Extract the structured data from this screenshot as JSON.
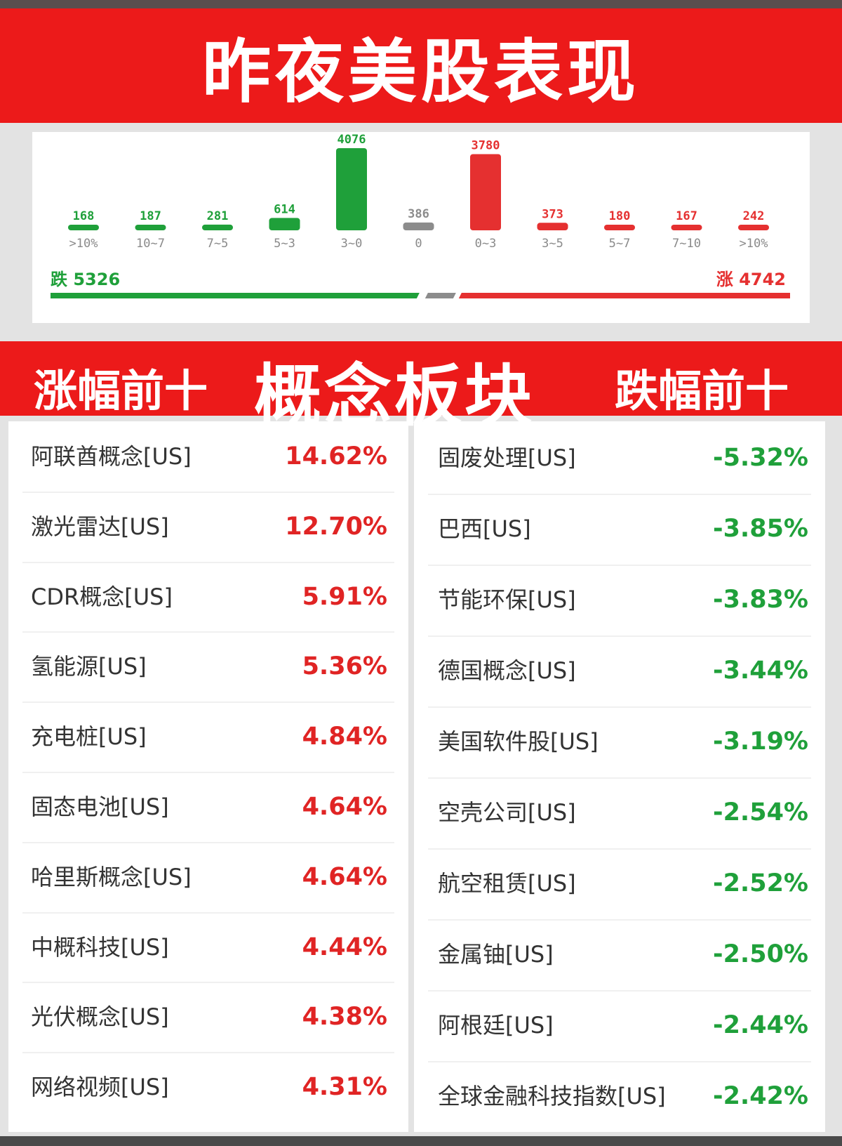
{
  "page_title": "昨夜美股表现",
  "colors": {
    "red": "#e53030",
    "green": "#1fa03a",
    "gray": "#8c8c8c",
    "banner_red": "#ec1a1a"
  },
  "chart_data": {
    "type": "bar",
    "categories": [
      ">10%",
      "10~7",
      "7~5",
      "5~3",
      "3~0",
      "0",
      "0~3",
      "3~5",
      "5~7",
      "7~10",
      ">10%"
    ],
    "values": [
      168,
      187,
      281,
      614,
      4076,
      386,
      3780,
      373,
      180,
      167,
      242
    ],
    "bar_colors": [
      "green",
      "green",
      "green",
      "green",
      "green",
      "gray",
      "red",
      "red",
      "red",
      "red",
      "red"
    ],
    "summary": {
      "down_label": "跌",
      "down_count": 5326,
      "up_label": "涨",
      "up_count": 4742
    }
  },
  "concept_banner": {
    "up_title": "涨幅前十",
    "center_title": "概念板块",
    "down_title": "跌幅前十"
  },
  "top_gainers": [
    {
      "name": "阿联酋概念[US]",
      "pct": "14.62%"
    },
    {
      "name": "激光雷达[US]",
      "pct": "12.70%"
    },
    {
      "name": "CDR概念[US]",
      "pct": "5.91%"
    },
    {
      "name": "氢能源[US]",
      "pct": "5.36%"
    },
    {
      "name": "充电桩[US]",
      "pct": "4.84%"
    },
    {
      "name": "固态电池[US]",
      "pct": "4.64%"
    },
    {
      "name": "哈里斯概念[US]",
      "pct": "4.64%"
    },
    {
      "name": "中概科技[US]",
      "pct": "4.44%"
    },
    {
      "name": "光伏概念[US]",
      "pct": "4.38%"
    },
    {
      "name": "网络视频[US]",
      "pct": "4.31%"
    }
  ],
  "top_losers": [
    {
      "name": "固废处理[US]",
      "pct": "-5.32%"
    },
    {
      "name": "巴西[US]",
      "pct": "-3.85%"
    },
    {
      "name": "节能环保[US]",
      "pct": "-3.83%"
    },
    {
      "name": "德国概念[US]",
      "pct": "-3.44%"
    },
    {
      "name": "美国软件股[US]",
      "pct": "-3.19%"
    },
    {
      "name": "空壳公司[US]",
      "pct": "-2.54%"
    },
    {
      "name": "航空租赁[US]",
      "pct": "-2.52%"
    },
    {
      "name": "金属铀[US]",
      "pct": "-2.50%"
    },
    {
      "name": "阿根廷[US]",
      "pct": "-2.44%"
    },
    {
      "name": "全球金融科技指数[US]",
      "pct": "-2.42%"
    }
  ]
}
